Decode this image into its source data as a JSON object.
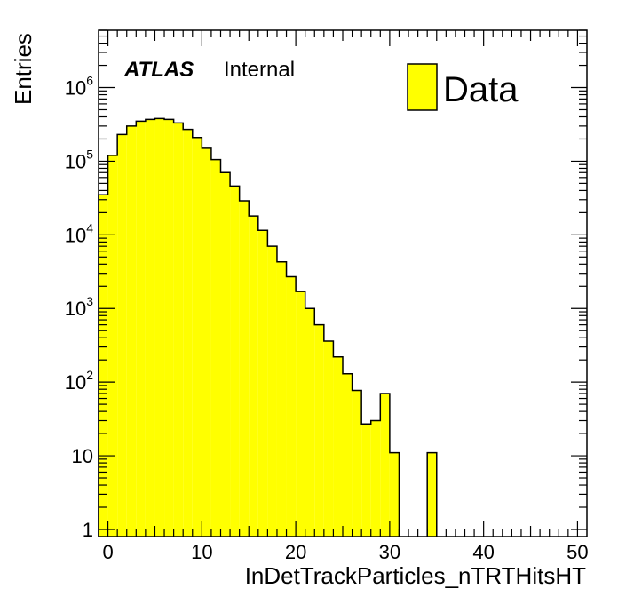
{
  "chart_data": {
    "type": "histogram",
    "xlabel": "InDetTrackParticles_nTRTHitsHT",
    "ylabel": "Entries",
    "xlim": [
      -1,
      51
    ],
    "ylim": [
      0.8,
      6000000
    ],
    "y_scale": "log",
    "x_ticks": [
      0,
      10,
      20,
      30,
      40,
      50
    ],
    "y_ticks": [
      {
        "value": 1,
        "base": "1",
        "exp": ""
      },
      {
        "value": 10,
        "base": "10",
        "exp": ""
      },
      {
        "value": 100,
        "base": "10",
        "exp": "2"
      },
      {
        "value": 1000,
        "base": "10",
        "exp": "3"
      },
      {
        "value": 10000,
        "base": "10",
        "exp": "4"
      },
      {
        "value": 100000,
        "base": "10",
        "exp": "5"
      },
      {
        "value": 1000000,
        "base": "10",
        "exp": "6"
      }
    ],
    "bin_low_edges": [
      -1,
      0,
      1,
      2,
      3,
      4,
      5,
      6,
      7,
      8,
      9,
      10,
      11,
      12,
      13,
      14,
      15,
      16,
      17,
      18,
      19,
      20,
      21,
      22,
      23,
      24,
      25,
      26,
      27,
      28,
      29,
      30,
      31,
      32,
      33,
      34
    ],
    "bin_width": 1,
    "values": [
      35000,
      120000,
      230000,
      300000,
      350000,
      370000,
      380000,
      370000,
      330000,
      270000,
      210000,
      150000,
      105000,
      70000,
      46000,
      29000,
      18000,
      11500,
      7000,
      4300,
      2700,
      1700,
      1000,
      600,
      360,
      220,
      130,
      77,
      27,
      30,
      70,
      11,
      0,
      0,
      0,
      11
    ],
    "series": [
      {
        "name": "Data",
        "color": "#ffff00",
        "line_color": "#000000"
      }
    ],
    "grid": false,
    "legend_position": "top-right"
  },
  "annotations": {
    "atlas_label": "ATLAS",
    "status_label": "Internal"
  }
}
